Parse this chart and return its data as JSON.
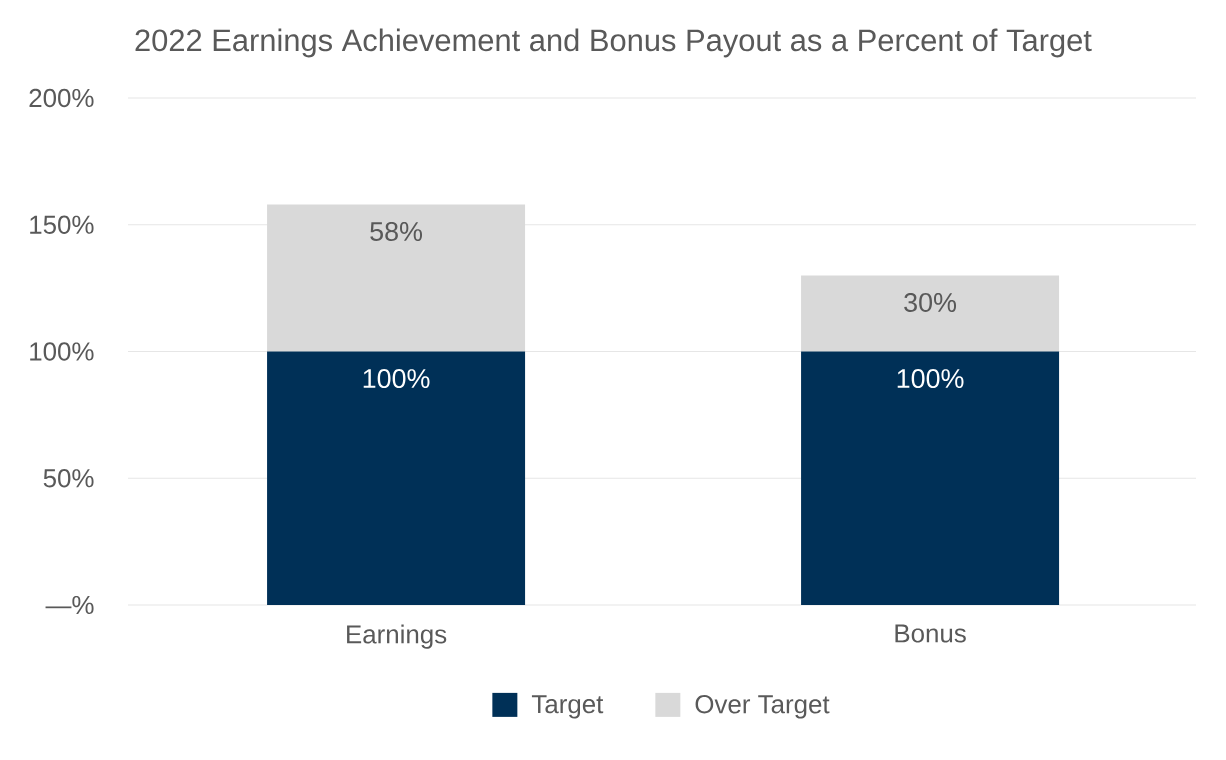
{
  "chart_data": {
    "type": "bar",
    "title": "2022 Earnings Achievement and Bonus Payout as a Percent of Target",
    "categories": [
      "Earnings",
      "Bonus"
    ],
    "stacked": true,
    "series": [
      {
        "name": "Target",
        "color": "#003057",
        "values": [
          100,
          100
        ],
        "value_labels": [
          "100%",
          "100%"
        ]
      },
      {
        "name": "Over Target",
        "color": "#d9d9d9",
        "values": [
          58,
          30
        ],
        "value_labels": [
          "58%",
          "30%"
        ]
      }
    ],
    "ylim": [
      0,
      200
    ],
    "yticks": [
      {
        "value": 0,
        "label": "—%"
      },
      {
        "value": 50,
        "label": "50%"
      },
      {
        "value": 100,
        "label": "100%"
      },
      {
        "value": 150,
        "label": "150%"
      },
      {
        "value": 200,
        "label": "200%"
      }
    ],
    "grid": "y",
    "legend": "bottom"
  }
}
